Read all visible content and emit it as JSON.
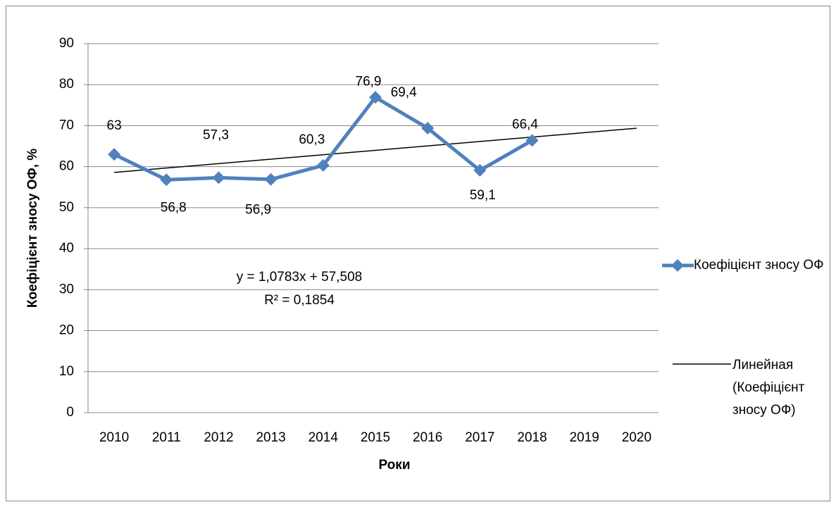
{
  "chart_data": {
    "type": "line",
    "y_label": "Коефіцієнт зносу ОФ, %",
    "x_label": "Роки",
    "categories": [
      "2010",
      "2011",
      "2012",
      "2013",
      "2014",
      "2015",
      "2016",
      "2017",
      "2018",
      "2019",
      "2020"
    ],
    "series": [
      {
        "name": "Коефіцієнт зносу ОФ",
        "color": "#4f81bd",
        "values": [
          63,
          56.8,
          57.3,
          56.9,
          60.3,
          76.9,
          69.4,
          59.1,
          66.4,
          null,
          null
        ],
        "value_labels": [
          "63",
          "56,8",
          "57,3",
          "56,9",
          "60,3",
          "76,9",
          "69,4",
          "59,1",
          "66,4",
          null,
          null
        ]
      }
    ],
    "trendline": {
      "name": "Линейная (Коефіцієнт зносу ОФ)",
      "color": "#000000",
      "slope": 1.0783,
      "intercept": 57.508,
      "equation": "y = 1,0783x + 57,508",
      "r2_label": "R² = 0,1854"
    },
    "ylim": [
      0,
      90
    ],
    "yticks": [
      0,
      10,
      20,
      30,
      40,
      50,
      60,
      70,
      80,
      90
    ],
    "grid": true,
    "legend": "right"
  }
}
